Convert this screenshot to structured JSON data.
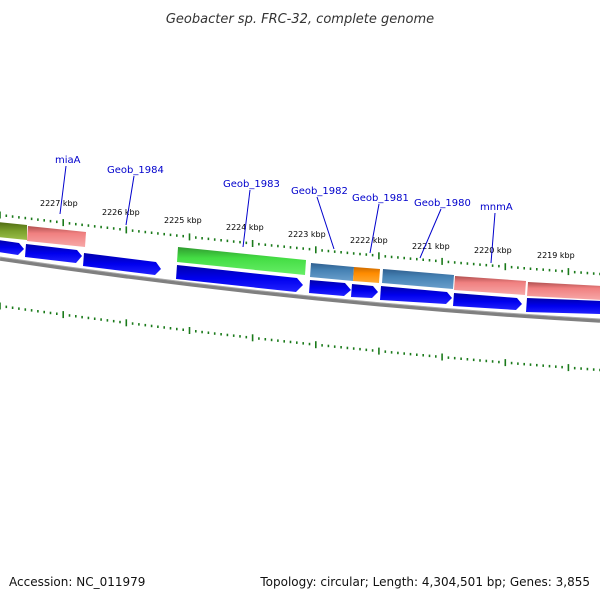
{
  "title": "Geobacter sp. FRC-32, complete genome",
  "footer": {
    "accession": "Accession: NC_011979",
    "summary": "Topology: circular; Length: 4,304,501 bp; Genes: 3,855"
  },
  "ticks": [
    "2227 kbp",
    "2226 kbp",
    "2225 kbp",
    "2224 kbp",
    "2223 kbp",
    "2222 kbp",
    "2221 kbp",
    "2220 kbp",
    "2219 kbp"
  ],
  "gene_labels": [
    "miaA",
    "Geob_1984",
    "Geob_1983",
    "Geob_1982",
    "Geob_1981",
    "Geob_1980",
    "mnmA"
  ],
  "colors": {
    "cds": "#0000ee",
    "backbone": "#808080",
    "tick": "#1a7a1a",
    "label_line": "#0000cc",
    "olive": "#6b8e23",
    "salmon": "#f08080",
    "green": "#33cc33",
    "steelblue": "#4682b4",
    "orange": "#ff8c00"
  }
}
